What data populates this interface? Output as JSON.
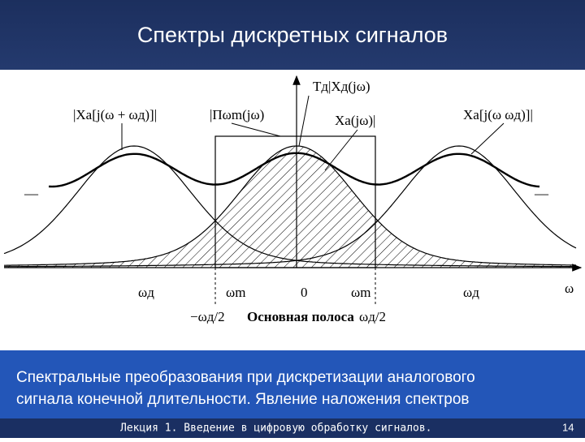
{
  "header": {
    "title": "Спектры дискретных сигналов"
  },
  "diagram": {
    "curve_labels": [
      "Tд|Xд(jω)",
      "|Xa[j(ω + ωд)]|",
      "|Пωm(jω)",
      "Xa(jω)|",
      "Xa[j(ω  ωд)]|"
    ],
    "side_marks": [
      "—",
      "—"
    ],
    "axis_labels": [
      "ωд",
      "ωm",
      "0",
      "ωm",
      "ωд",
      "ω"
    ],
    "band_labels": [
      "−ωд/2",
      "Основная полоса",
      "ωд/2"
    ]
  },
  "caption": {
    "lines": [
      "Спектральные преобразования при дискретизации аналогового",
      "сигнала  конечной длительности. Явление наложения спектров"
    ]
  },
  "footer": {
    "lecture": "Лекция 1. Введение в цифровую обработку сигналов.",
    "page": "14"
  }
}
